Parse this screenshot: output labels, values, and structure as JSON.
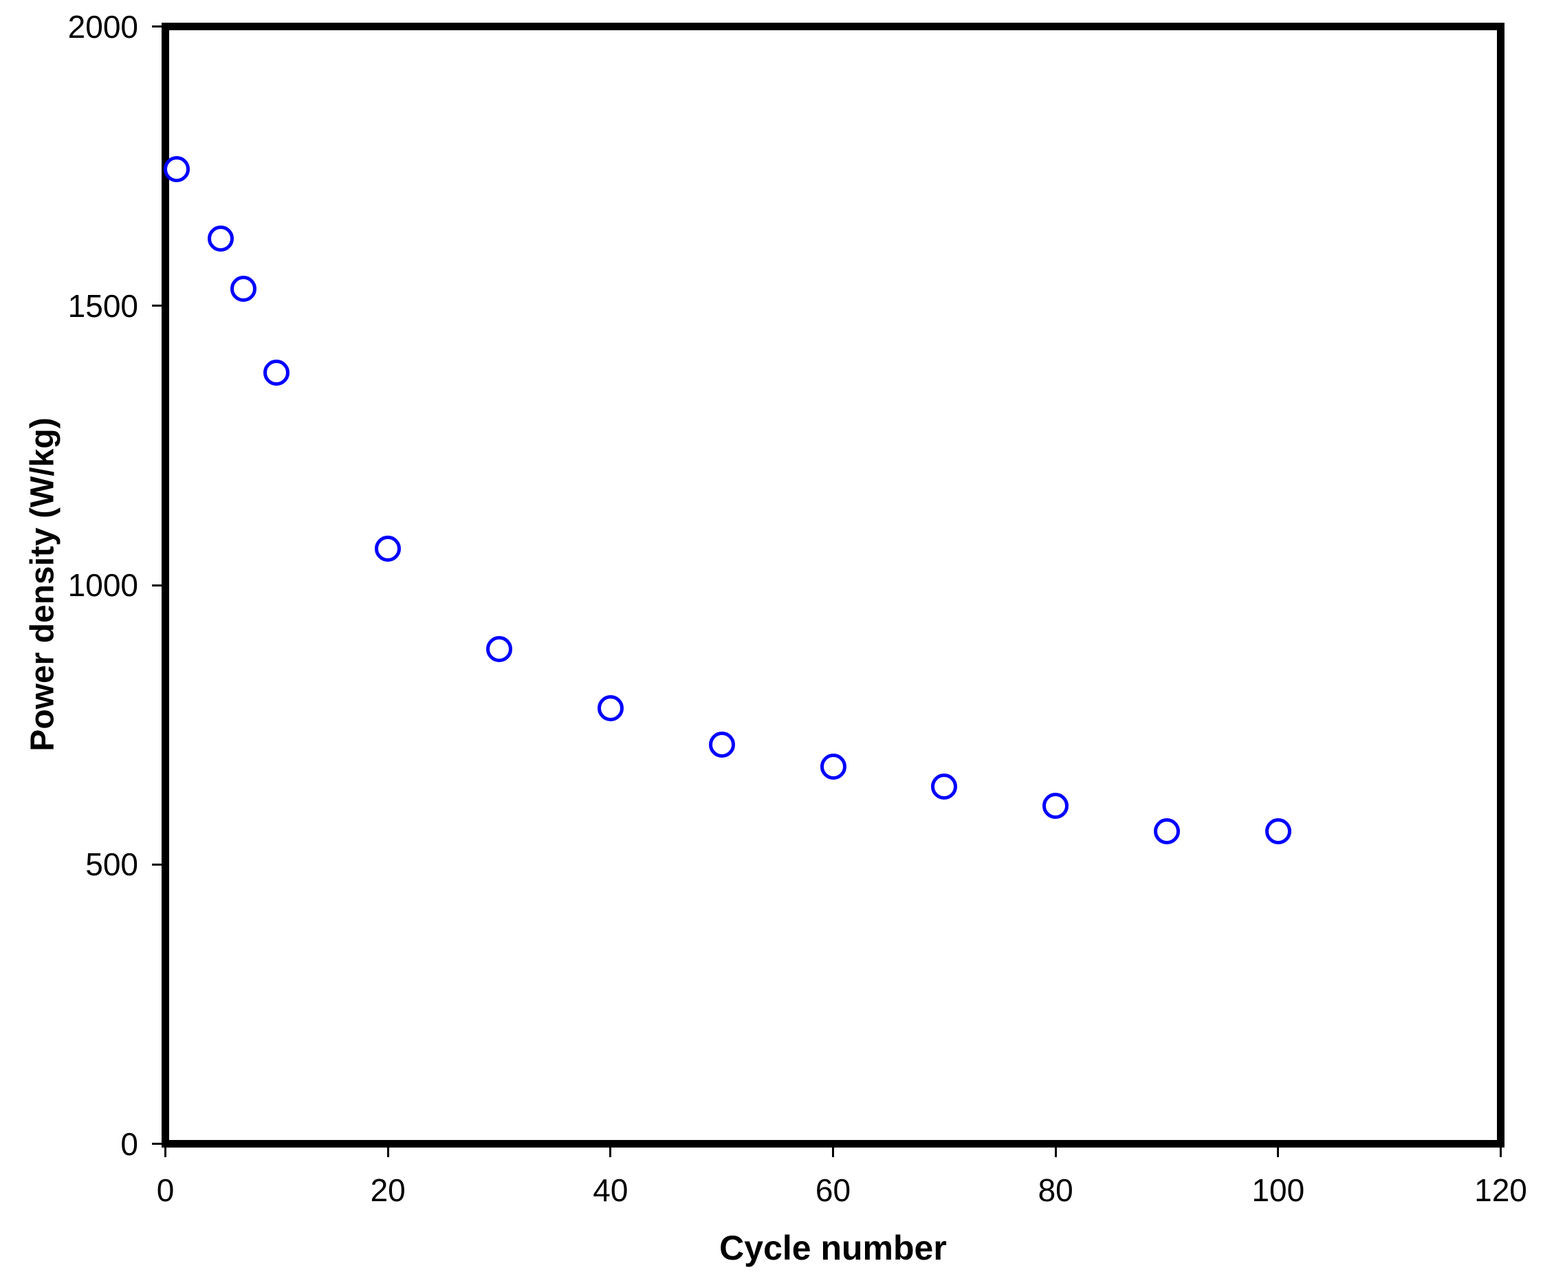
{
  "chart_data": {
    "type": "scatter",
    "title": "",
    "xlabel": "Cycle number",
    "ylabel": "Power density (W/kg)",
    "xlim": [
      0,
      120
    ],
    "ylim": [
      0,
      2000
    ],
    "x_ticks": [
      0,
      20,
      40,
      60,
      80,
      100,
      120
    ],
    "y_ticks": [
      0,
      500,
      1000,
      1500,
      2000
    ],
    "grid": false,
    "legend": null,
    "series": [
      {
        "name": "Power density",
        "marker": "open-circle",
        "color": "#0000ff",
        "points": [
          [
            1,
            1745
          ],
          [
            5,
            1620
          ],
          [
            7,
            1530
          ],
          [
            10,
            1380
          ],
          [
            20,
            1065
          ],
          [
            30,
            885
          ],
          [
            40,
            780
          ],
          [
            50,
            715
          ],
          [
            60,
            675
          ],
          [
            70,
            640
          ],
          [
            80,
            605
          ],
          [
            90,
            560
          ],
          [
            100,
            560
          ]
        ]
      }
    ]
  },
  "colors": {
    "marker": "#0000ff",
    "axis": "#000000",
    "background": "#ffffff"
  }
}
